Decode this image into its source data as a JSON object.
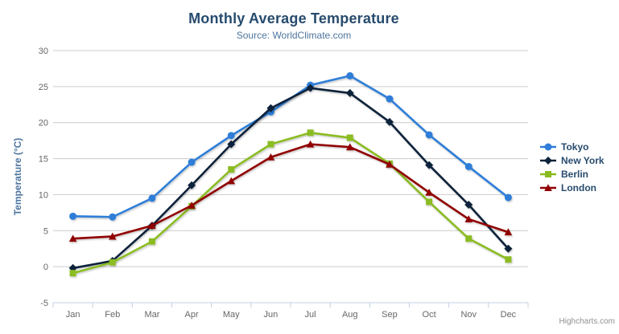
{
  "credits": {
    "label": "Highcharts.com"
  },
  "ui": {
    "context_button_icon": "hamburger-menu-icon"
  },
  "chart_data": {
    "type": "line",
    "title": "Monthly Average Temperature",
    "subtitle": "Source: WorldClimate.com",
    "xlabel": "",
    "ylabel": "Temperature (°C)",
    "categories": [
      "Jan",
      "Feb",
      "Mar",
      "Apr",
      "May",
      "Jun",
      "Jul",
      "Aug",
      "Sep",
      "Oct",
      "Nov",
      "Dec"
    ],
    "yticks": [
      -5,
      0,
      5,
      10,
      15,
      20,
      25,
      30
    ],
    "ylim": [
      -5,
      30
    ],
    "grid": true,
    "legend_position": "right",
    "series": [
      {
        "name": "Tokyo",
        "color": "#2f7ed8",
        "marker": "circle",
        "values": [
          7.0,
          6.9,
          9.5,
          14.5,
          18.2,
          21.5,
          25.2,
          26.5,
          23.3,
          18.3,
          13.9,
          9.6
        ]
      },
      {
        "name": "New York",
        "color": "#0d233a",
        "marker": "diamond",
        "values": [
          -0.2,
          0.8,
          5.7,
          11.3,
          17.0,
          22.0,
          24.8,
          24.1,
          20.1,
          14.1,
          8.6,
          2.5
        ]
      },
      {
        "name": "Berlin",
        "color": "#8bbc21",
        "marker": "square",
        "values": [
          -0.9,
          0.6,
          3.5,
          8.4,
          13.5,
          17.0,
          18.6,
          17.9,
          14.3,
          9.0,
          3.9,
          1.0
        ]
      },
      {
        "name": "London",
        "color": "#910000",
        "marker": "triangle",
        "values": [
          3.9,
          4.2,
          5.7,
          8.5,
          11.9,
          15.2,
          17.0,
          16.6,
          14.2,
          10.3,
          6.6,
          4.8
        ]
      }
    ],
    "colors": {
      "title": "#274b6d",
      "subtitle": "#4d759e",
      "axis_title": "#4d759e",
      "axis_label": "#666666",
      "axis_line": "#c0d0e0",
      "gridline": "#cccccc",
      "legend_text": "#274b6d",
      "credits": "#909090"
    }
  }
}
